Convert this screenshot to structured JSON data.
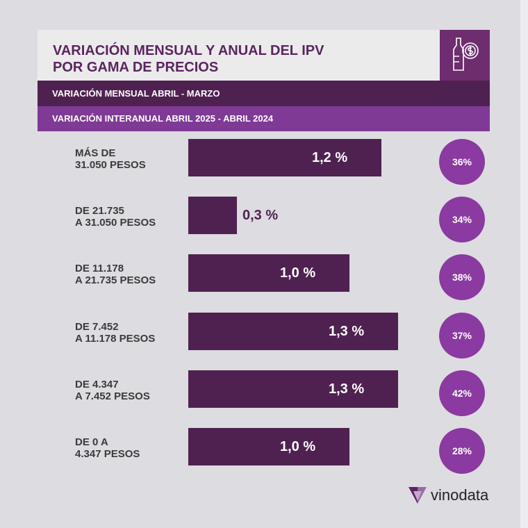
{
  "chart_data": {
    "type": "bar",
    "title": "VARIACIÓN MENSUAL Y ANUAL DEL IPV POR GAMA DE PRECIOS",
    "legend": [
      "VARIACIÓN MENSUAL ABRIL - MARZO",
      "VARIACIÓN INTERANUAL  ABRIL 2025 - ABRIL 2024"
    ],
    "categories": [
      [
        "MÁS DE",
        "31.050 PESOS"
      ],
      [
        "DE 21.735",
        "A 31.050 PESOS"
      ],
      [
        "DE 11.178",
        "A 21.735 PESOS"
      ],
      [
        "DE 7.452",
        "A 11.178 PESOS"
      ],
      [
        "DE 4.347",
        "A 7.452 PESOS"
      ],
      [
        "DE 0 A",
        "4.347 PESOS"
      ]
    ],
    "series": [
      {
        "name": "Variación mensual",
        "values": [
          1.2,
          0.3,
          1.0,
          1.3,
          1.3,
          1.0
        ],
        "labels": [
          "1,2 %",
          "0,3 %",
          "1,0 %",
          "1,3 %",
          "1,3 %",
          "1,0 %"
        ]
      },
      {
        "name": "Variación interanual",
        "values": [
          36,
          34,
          38,
          37,
          42,
          28
        ],
        "labels": [
          "36%",
          "34%",
          "38%",
          "37%",
          "42%",
          "28%"
        ]
      }
    ],
    "colors": {
      "monthly": "#4f2150",
      "annual": "#8a3aa0",
      "title": "#5b2460"
    }
  },
  "brand": "vinodata",
  "icon": "wine-bottle-coin-icon"
}
